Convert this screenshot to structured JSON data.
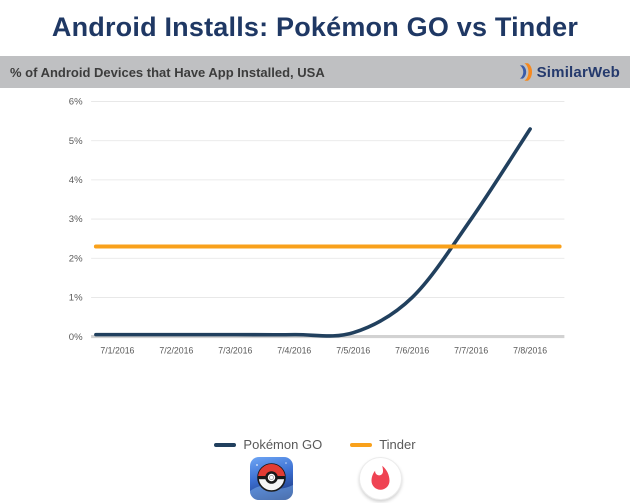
{
  "title": "Android Installs: Pokémon GO vs Tinder",
  "subtitle_bar": {
    "left_text": "% of Android Devices that Have App Installed, USA",
    "brand": "SimilarWeb"
  },
  "chart_data": {
    "type": "line",
    "title": "Android Installs: Pokémon GO vs Tinder",
    "x": [
      "7/1/2016",
      "7/2/2016",
      "7/3/2016",
      "7/4/2016",
      "7/5/2016",
      "7/6/2016",
      "7/7/2016",
      "7/8/2016"
    ],
    "series": [
      {
        "name": "Pokémon GO",
        "color": "#21405e",
        "values": [
          0.05,
          0.05,
          0.05,
          0.05,
          0.1,
          1.0,
          3.0,
          5.3
        ]
      },
      {
        "name": "Tinder",
        "color": "#F9A11B",
        "values": [
          2.3,
          2.3,
          2.3,
          2.3,
          2.3,
          2.3,
          2.3,
          2.3
        ]
      }
    ],
    "ylabel": "% of Android devices with app installed",
    "xlabel": "",
    "ylim": [
      0,
      6
    ],
    "yticks": [
      "0%",
      "1%",
      "2%",
      "3%",
      "4%",
      "5%",
      "6%"
    ],
    "grid": true,
    "legend_position": "bottom"
  },
  "icons": {
    "pokemon_go": "Pokémon GO app icon (pokéball)",
    "tinder": "Tinder app icon (flame)"
  },
  "colors": {
    "title": "#1f3864",
    "banner": "#bfc0c2",
    "axis_text": "#595959",
    "gridline": "#e4e4e4",
    "baseline": "#d2d2d2",
    "logo_blue": "#3a5ca9",
    "logo_orange": "#f6891f"
  }
}
